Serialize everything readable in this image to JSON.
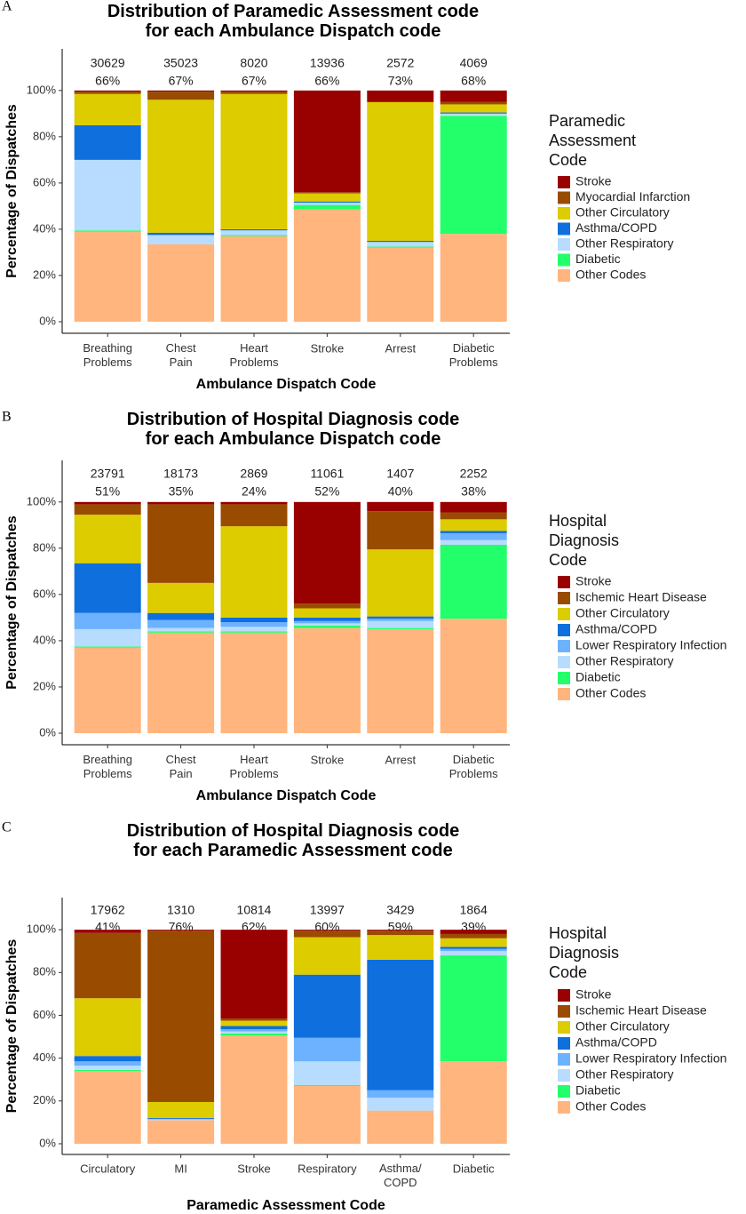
{
  "chart_data": [
    {
      "type": "stacked_bar",
      "panel": "A",
      "title": "Distribution of Paramedic Assessment code\nfor each Ambulance Dispatch code",
      "x_label": "Ambulance Dispatch Code",
      "y_label": "Percentage of Dispatches",
      "legend_title": "Paramedic\nAssessment\nCode",
      "categories": [
        "Breathing\nProblems",
        "Chest\nPain",
        "Heart\nProblems",
        "Stroke",
        "Arrest",
        "Diabetic\nProblems"
      ],
      "annotations": [
        {
          "count": 30629,
          "percent": "66%"
        },
        {
          "count": 35023,
          "percent": "67%"
        },
        {
          "count": 8020,
          "percent": "67%"
        },
        {
          "count": 13936,
          "percent": "66%"
        },
        {
          "count": 2572,
          "percent": "73%"
        },
        {
          "count": 4069,
          "percent": "68%"
        }
      ],
      "ylim": [
        -5,
        118
      ],
      "yticks": [
        {
          "value": 0,
          "label": "0%"
        },
        {
          "value": 20,
          "label": "20%"
        },
        {
          "value": 40,
          "label": "40%"
        },
        {
          "value": 60,
          "label": "60%"
        },
        {
          "value": 80,
          "label": "80%"
        },
        {
          "value": 100,
          "label": "100%"
        }
      ],
      "series": [
        {
          "name": "Stroke",
          "color": "#990000",
          "values": [
            0.5,
            0.5,
            0.5,
            44,
            5,
            5
          ]
        },
        {
          "name": "Myocardial Infarction",
          "color": "#994c00",
          "values": [
            1,
            3.5,
            1,
            0.5,
            0,
            1
          ]
        },
        {
          "name": "Other Circulatory",
          "color": "#dccc00",
          "values": [
            13.5,
            57.5,
            58.5,
            3.5,
            60,
            3.5
          ]
        },
        {
          "name": "Asthma/COPD",
          "color": "#0f6fdd",
          "values": [
            15,
            1,
            0.5,
            0.5,
            0.5,
            0.5
          ]
        },
        {
          "name": "Other Respiratory",
          "color": "#b8dcff",
          "values": [
            30.5,
            4,
            2,
            1,
            2,
            1
          ]
        },
        {
          "name": "Diabetic",
          "color": "#22ff6a",
          "values": [
            0.5,
            0,
            0.5,
            2,
            0.5,
            51
          ]
        },
        {
          "name": "Other Codes",
          "color": "#ffb57d",
          "values": [
            39,
            33.5,
            37,
            48.5,
            32,
            38
          ]
        }
      ]
    },
    {
      "type": "stacked_bar",
      "panel": "B",
      "title": "Distribution of Hospital Diagnosis code\nfor each Ambulance Dispatch code",
      "x_label": "Ambulance Dispatch Code",
      "y_label": "Percentage of Dispatches",
      "legend_title": "Hospital\nDiagnosis\nCode",
      "categories": [
        "Breathing\nProblems",
        "Chest\nPain",
        "Heart\nProblems",
        "Stroke",
        "Arrest",
        "Diabetic\nProblems"
      ],
      "annotations": [
        {
          "count": 23791,
          "percent": "51%"
        },
        {
          "count": 18173,
          "percent": "35%"
        },
        {
          "count": 2869,
          "percent": "24%"
        },
        {
          "count": 11061,
          "percent": "52%"
        },
        {
          "count": 1407,
          "percent": "40%"
        },
        {
          "count": 2252,
          "percent": "38%"
        }
      ],
      "ylim": [
        -5,
        118
      ],
      "yticks": [
        {
          "value": 0,
          "label": "0%"
        },
        {
          "value": 20,
          "label": "20%"
        },
        {
          "value": 40,
          "label": "40%"
        },
        {
          "value": 60,
          "label": "60%"
        },
        {
          "value": 80,
          "label": "80%"
        },
        {
          "value": 100,
          "label": "100%"
        }
      ],
      "series": [
        {
          "name": "Stroke",
          "color": "#990000",
          "values": [
            1,
            1,
            1,
            44,
            4,
            4.5
          ]
        },
        {
          "name": "Ischemic Heart Disease",
          "color": "#994c00",
          "values": [
            4.5,
            34,
            9.5,
            2,
            16.5,
            3
          ]
        },
        {
          "name": "Other Circulatory",
          "color": "#dccc00",
          "values": [
            21,
            13,
            39.5,
            4,
            29,
            5
          ]
        },
        {
          "name": "Asthma/COPD",
          "color": "#0f6fdd",
          "values": [
            21.5,
            3,
            2,
            1.5,
            1,
            1
          ]
        },
        {
          "name": "Lower Respiratory Infection",
          "color": "#6cb2ff",
          "values": [
            7,
            3.5,
            2,
            1,
            1,
            3
          ]
        },
        {
          "name": "Other Respiratory",
          "color": "#b8dcff",
          "values": [
            7.5,
            1.5,
            2,
            1,
            3,
            2
          ]
        },
        {
          "name": "Diabetic",
          "color": "#22ff6a",
          "values": [
            0.5,
            0.5,
            0.5,
            1,
            0.5,
            32
          ]
        },
        {
          "name": "Other Codes",
          "color": "#ffb57d",
          "values": [
            37,
            43.5,
            43.5,
            45.5,
            45,
            49.5
          ]
        }
      ]
    },
    {
      "type": "stacked_bar",
      "panel": "C",
      "title": "Distribution of Hospital Diagnosis code\nfor each Paramedic Assessment code",
      "x_label": "Paramedic Assessment Code",
      "y_label": "Percentage of Dispatches",
      "legend_title": "Hospital\nDiagnosis\nCode",
      "categories": [
        "Circulatory",
        "MI",
        "Stroke",
        "Respiratory",
        "Asthma/\nCOPD",
        "Diabetic"
      ],
      "annotations": [
        {
          "count": 17962,
          "percent": "41%"
        },
        {
          "count": 1310,
          "percent": "76%"
        },
        {
          "count": 10814,
          "percent": "62%"
        },
        {
          "count": 13997,
          "percent": "60%"
        },
        {
          "count": 3429,
          "percent": "59%"
        },
        {
          "count": 1864,
          "percent": "39%"
        }
      ],
      "ylim": [
        -5,
        115
      ],
      "yticks": [
        {
          "value": 0,
          "label": "0%"
        },
        {
          "value": 20,
          "label": "20%"
        },
        {
          "value": 40,
          "label": "40%"
        },
        {
          "value": 60,
          "label": "60%"
        },
        {
          "value": 80,
          "label": "80%"
        },
        {
          "value": 100,
          "label": "100%"
        }
      ],
      "series": [
        {
          "name": "Stroke",
          "color": "#990000",
          "values": [
            1.5,
            0.5,
            41.5,
            0.5,
            0.5,
            2
          ]
        },
        {
          "name": "Ischemic Heart Disease",
          "color": "#994c00",
          "values": [
            30.5,
            80,
            1,
            3,
            2,
            2
          ]
        },
        {
          "name": "Other Circulatory",
          "color": "#dccc00",
          "values": [
            27,
            7.5,
            2.5,
            17.5,
            11.5,
            4
          ]
        },
        {
          "name": "Asthma/COPD",
          "color": "#0f6fdd",
          "values": [
            2.5,
            0.5,
            1.5,
            29.5,
            61,
            1
          ]
        },
        {
          "name": "Lower Respiratory Infection",
          "color": "#6cb2ff",
          "values": [
            2,
            0,
            1,
            11,
            3.5,
            1
          ]
        },
        {
          "name": "Other Respiratory",
          "color": "#b8dcff",
          "values": [
            2,
            0.5,
            1,
            11,
            6,
            2
          ]
        },
        {
          "name": "Diabetic",
          "color": "#22ff6a",
          "values": [
            0.5,
            0,
            1,
            0.5,
            0,
            49.5
          ]
        },
        {
          "name": "Other Codes",
          "color": "#ffb57d",
          "values": [
            34,
            11,
            50.5,
            27,
            15.5,
            38.5
          ]
        }
      ]
    }
  ]
}
